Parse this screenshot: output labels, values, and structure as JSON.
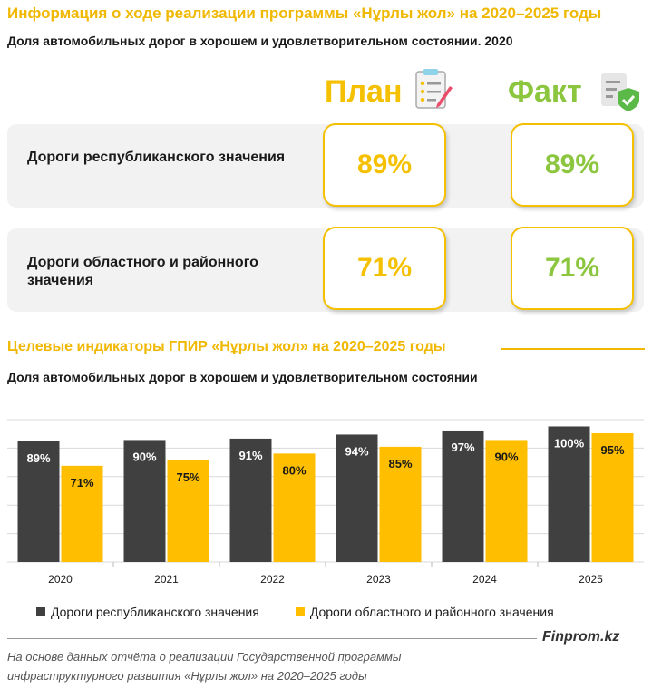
{
  "title": "Информация о ходе реализации программы «Нұрлы жол» на 2020–2025  годы",
  "subtitle1": "Доля автомобильных  дорог в хорошем и удовлетворительном  состоянии.  2020",
  "columns": {
    "plan": "План",
    "fact": "Факт"
  },
  "rows": [
    {
      "label": "Дороги республиканского значения",
      "plan": "89%",
      "fact": "89%"
    },
    {
      "label": "Дороги областного и районного значения",
      "plan": "71%",
      "fact": "71%"
    }
  ],
  "section2_title": "Целевые индикаторы ГПИР «Нұрлы жол» на 2020–2025  годы",
  "subtitle2": "Доля автомобильных  дорог в хорошем и удовлетворительном  состоянии",
  "chart_data": {
    "type": "bar",
    "categories": [
      "2020",
      "2021",
      "2022",
      "2023",
      "2024",
      "2025"
    ],
    "series": [
      {
        "name": "Дороги республиканского значения",
        "values": [
          89,
          90,
          91,
          94,
          97,
          100
        ],
        "color": "#404040"
      },
      {
        "name": "Дороги областного и районного значения",
        "values": [
          71,
          75,
          80,
          85,
          90,
          95
        ],
        "color": "#ffbe00"
      }
    ],
    "value_suffix": "%",
    "ylim": [
      0,
      105
    ],
    "grid": true,
    "legend_position": "bottom"
  },
  "brand": "Finprom.kz",
  "source": "На основе данных отчёта о реализации  Государственной программы инфраструктурного развития «Нұрлы жол» на 2020–2025 годы",
  "icons": {
    "plan": "checklist-pencil-icon",
    "fact": "document-shield-check-icon"
  },
  "colors": {
    "accent_yellow": "#f5c000",
    "accent_green": "#8cc63f",
    "bar_dark": "#404040",
    "bar_yellow": "#ffbe00"
  }
}
